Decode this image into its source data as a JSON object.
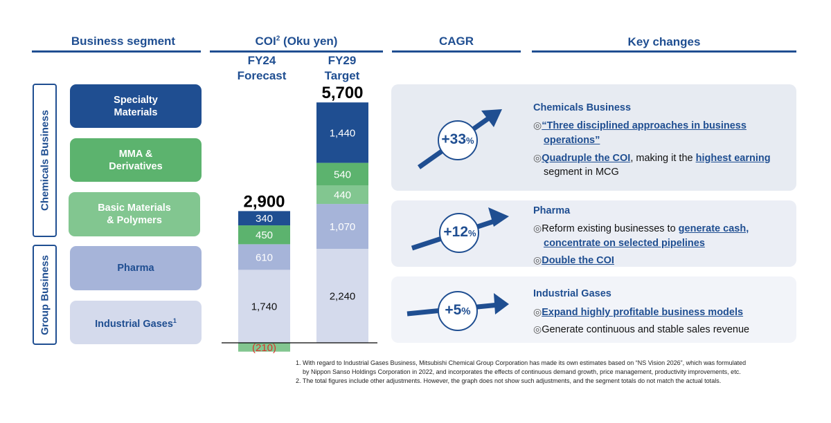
{
  "headers": {
    "segment": "Business segment",
    "coi_main": "COI",
    "coi_sup": "2",
    "coi_unit": " (Oku yen)",
    "cagr": "CAGR",
    "key_changes": "Key changes"
  },
  "groups": {
    "chemicals": "Chemicals Business",
    "group": "Group Business"
  },
  "segments": [
    {
      "line1": "Specialty",
      "line2": "Materials",
      "color": "#1f4e91"
    },
    {
      "line1": "MMA &",
      "line2": "Derivatives",
      "color": "#5cb36e"
    },
    {
      "line1": "Basic Materials",
      "line2": "& Polymers",
      "color": "#82c690"
    },
    {
      "line1": "Pharma",
      "line2": "",
      "color": "#a6b4d9"
    },
    {
      "line1": "Industrial Gases",
      "line2": "",
      "sup": "1",
      "color": "#d4daec"
    }
  ],
  "columns": [
    {
      "line1": "FY24",
      "line2": "Forecast"
    },
    {
      "line1": "FY29",
      "line2": "Target"
    }
  ],
  "chart_data": {
    "type": "bar",
    "stacked": true,
    "title": "COI (Oku yen)",
    "categories": [
      "FY24 Forecast",
      "FY29 Target"
    ],
    "totals": [
      2900,
      5700
    ],
    "total_labels": [
      "2,900",
      "5,700"
    ],
    "series": [
      {
        "name": "Industrial Gases",
        "values": [
          1740,
          2240
        ],
        "labels": [
          "1,740",
          "2,240"
        ],
        "color": "#d4daec",
        "label_color": "#111111"
      },
      {
        "name": "Pharma",
        "values": [
          610,
          1070
        ],
        "labels": [
          "610",
          "1,070"
        ],
        "color": "#a6b4d9",
        "label_color": "#ffffff"
      },
      {
        "name": "Basic Materials & Polymers",
        "values": [
          -210,
          440
        ],
        "labels": [
          "(210)",
          "440"
        ],
        "color": "#82c690",
        "label_color": "#ffffff",
        "negative_label_color": "#d9342b"
      },
      {
        "name": "MMA & Derivatives",
        "values": [
          450,
          540
        ],
        "labels": [
          "450",
          "540"
        ],
        "color": "#5cb36e",
        "label_color": "#ffffff"
      },
      {
        "name": "Specialty Materials",
        "values": [
          340,
          1440
        ],
        "labels": [
          "340",
          "1,440"
        ],
        "color": "#1f4e91",
        "label_color": "#ffffff"
      }
    ]
  },
  "panels": [
    {
      "cagr": "+33",
      "pct": "%",
      "title": "Chemicals Business",
      "bullet": "◎",
      "l1": "“Three disciplined approaches in business",
      "l2": "operations”",
      "l3a": "Quadruple the COI",
      "l3b": ", making it the ",
      "l3c": "highest earning",
      "l4": "segment in MCG"
    },
    {
      "cagr": "+12",
      "pct": "%",
      "title": "Pharma",
      "bullet": "◎",
      "l1a": "Reform existing businesses to ",
      "l1b": "generate cash,",
      "l2": "concentrate on selected pipelines",
      "l3": "Double the COI"
    },
    {
      "cagr": "+5",
      "pct": "%",
      "title": "Industrial Gases",
      "bullet": "◎",
      "l1": "Expand highly profitable business models",
      "l2": "Generate continuous and stable sales revenue"
    }
  ],
  "footnotes": [
    "1. With regard to Industrial Gases Business, Mitsubishi Chemical Group Corporation has made its own estimates based on “NS Vision 2026”, which was formulated",
    "by Nippon Sanso Holdings Corporation in 2022, and incorporates the effects of continuous demand growth, price management, productivity improvements, etc.",
    "2. The total figures include other adjustments. However, the graph does not show such adjustments, and the segment totals do not match the actual totals."
  ]
}
